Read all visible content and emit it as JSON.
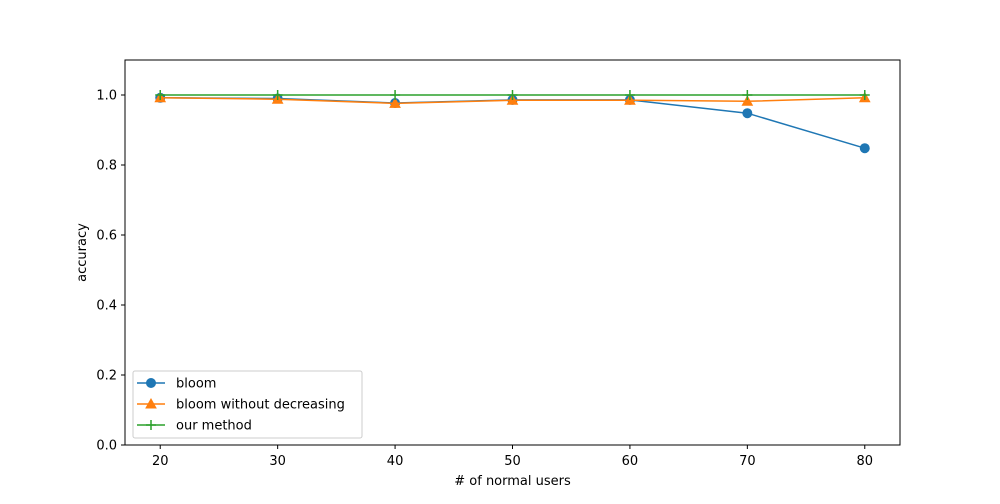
{
  "chart_data": {
    "type": "line",
    "title": "",
    "xlabel": "# of normal users",
    "ylabel": "accuracy",
    "x": [
      20,
      30,
      40,
      50,
      60,
      70,
      80
    ],
    "xlim": [
      17,
      83
    ],
    "ylim": [
      0.0,
      1.1
    ],
    "xticks": [
      "20",
      "30",
      "40",
      "50",
      "60",
      "70",
      "80"
    ],
    "yticks": [
      "0.0",
      "0.2",
      "0.4",
      "0.6",
      "0.8",
      "1.0"
    ],
    "grid": false,
    "legend_position": "lower-left",
    "series": [
      {
        "name": "bloom",
        "color": "#1f77b4",
        "marker": "circle",
        "values": [
          0.992,
          0.99,
          0.977,
          0.986,
          0.986,
          0.948,
          0.848
        ]
      },
      {
        "name": "bloom without decreasing",
        "color": "#ff7f0e",
        "marker": "triangle",
        "values": [
          0.992,
          0.988,
          0.976,
          0.985,
          0.985,
          0.982,
          0.992
        ]
      },
      {
        "name": "our method",
        "color": "#2ca02c",
        "marker": "plus",
        "values": [
          1.0,
          1.0,
          1.0,
          1.0,
          1.0,
          1.0,
          1.0
        ]
      }
    ]
  }
}
